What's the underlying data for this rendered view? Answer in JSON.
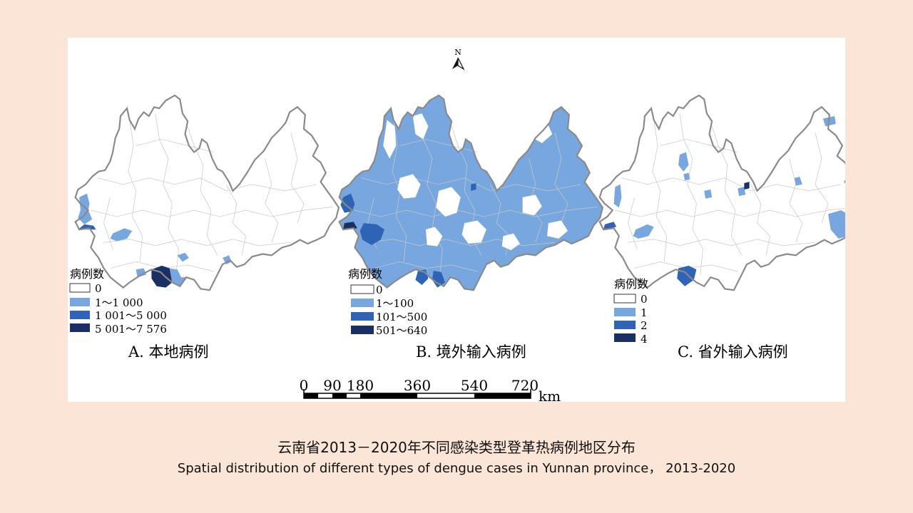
{
  "colors": {
    "c0": "#ffffff",
    "c1": "#77a7de",
    "c2": "#2e63b6",
    "c3": "#1a2f63",
    "border": "#8a8a8a"
  },
  "north_arrow": {
    "label": "N"
  },
  "maps": [
    {
      "id": "A",
      "title": "A. 本地病例",
      "legend_title": "病例数",
      "legend": [
        "0",
        "1～1 000",
        "1 001～5 000",
        "5 001～7 576"
      ]
    },
    {
      "id": "B",
      "title": "B. 境外输入病例",
      "legend_title": "病例数",
      "legend": [
        "0",
        "1～100",
        "101～500",
        "501～640"
      ]
    },
    {
      "id": "C",
      "title": "C. 省外输入病例",
      "legend_title": "病例数",
      "legend": [
        "0",
        "1",
        "2",
        "4"
      ]
    }
  ],
  "scale_bar": {
    "ticks": [
      "0",
      "90",
      "180",
      "360",
      "540",
      "720"
    ],
    "unit": "km"
  },
  "caption": {
    "zh": "云南省2013－2020年不同感染类型登革热病例地区分布",
    "en": "Spatial distribution of different types of dengue cases in Yunnan province， 2013-2020"
  }
}
